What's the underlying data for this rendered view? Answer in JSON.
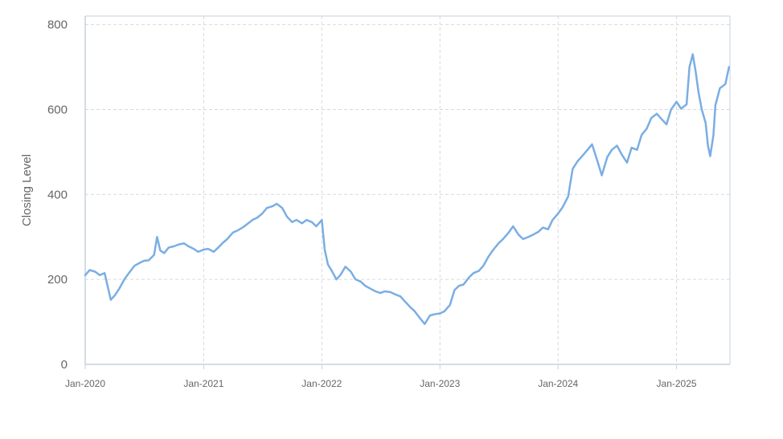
{
  "chart_data": {
    "type": "line",
    "title": "",
    "xlabel": "",
    "ylabel": "Closing Level",
    "xlim": [
      "2020-01-01",
      "2025-06-15"
    ],
    "ylim": [
      0,
      820
    ],
    "grid": true,
    "legend": "none",
    "x_ticks": [
      "Jan-2020",
      "Jan-2021",
      "Jan-2022",
      "Jan-2023",
      "Jan-2024",
      "Jan-2025"
    ],
    "x_tick_dates": [
      "2020-01-01",
      "2021-01-01",
      "2022-01-01",
      "2023-01-01",
      "2024-01-01",
      "2025-01-01"
    ],
    "y_ticks": [
      0,
      200,
      400,
      600,
      800
    ],
    "series": [
      {
        "color": "#7aaee3",
        "x": [
          "2020-01-01",
          "2020-01-15",
          "2020-02-01",
          "2020-02-15",
          "2020-03-01",
          "2020-03-10",
          "2020-03-20",
          "2020-04-01",
          "2020-04-15",
          "2020-05-01",
          "2020-05-15",
          "2020-06-01",
          "2020-06-15",
          "2020-07-01",
          "2020-07-15",
          "2020-08-01",
          "2020-08-10",
          "2020-08-20",
          "2020-09-01",
          "2020-09-15",
          "2020-10-01",
          "2020-10-15",
          "2020-11-01",
          "2020-11-15",
          "2020-12-01",
          "2020-12-15",
          "2021-01-01",
          "2021-01-15",
          "2021-02-01",
          "2021-02-15",
          "2021-03-01",
          "2021-03-15",
          "2021-04-01",
          "2021-04-15",
          "2021-05-01",
          "2021-05-15",
          "2021-06-01",
          "2021-06-15",
          "2021-07-01",
          "2021-07-15",
          "2021-08-01",
          "2021-08-15",
          "2021-09-01",
          "2021-09-15",
          "2021-10-01",
          "2021-10-15",
          "2021-11-01",
          "2021-11-15",
          "2021-12-01",
          "2021-12-15",
          "2022-01-01",
          "2022-01-10",
          "2022-01-20",
          "2022-02-01",
          "2022-02-15",
          "2022-03-01",
          "2022-03-15",
          "2022-04-01",
          "2022-04-15",
          "2022-05-01",
          "2022-05-15",
          "2022-06-01",
          "2022-06-15",
          "2022-07-01",
          "2022-07-15",
          "2022-08-01",
          "2022-08-15",
          "2022-09-01",
          "2022-09-15",
          "2022-10-01",
          "2022-10-15",
          "2022-11-01",
          "2022-11-15",
          "2022-12-01",
          "2022-12-15",
          "2023-01-01",
          "2023-01-15",
          "2023-02-01",
          "2023-02-15",
          "2023-03-01",
          "2023-03-15",
          "2023-04-01",
          "2023-04-15",
          "2023-05-01",
          "2023-05-15",
          "2023-06-01",
          "2023-06-15",
          "2023-07-01",
          "2023-07-15",
          "2023-08-01",
          "2023-08-15",
          "2023-09-01",
          "2023-09-15",
          "2023-10-01",
          "2023-10-15",
          "2023-11-01",
          "2023-11-15",
          "2023-12-01",
          "2023-12-15",
          "2024-01-01",
          "2024-01-15",
          "2024-02-01",
          "2024-02-15",
          "2024-03-01",
          "2024-03-15",
          "2024-04-01",
          "2024-04-15",
          "2024-05-01",
          "2024-05-15",
          "2024-06-01",
          "2024-06-15",
          "2024-07-01",
          "2024-07-15",
          "2024-08-01",
          "2024-08-15",
          "2024-09-01",
          "2024-09-15",
          "2024-10-01",
          "2024-10-15",
          "2024-11-01",
          "2024-11-15",
          "2024-12-01",
          "2024-12-15",
          "2025-01-01",
          "2025-01-15",
          "2025-02-01",
          "2025-02-10",
          "2025-02-20",
          "2025-03-01",
          "2025-03-10",
          "2025-03-20",
          "2025-04-01",
          "2025-04-08",
          "2025-04-15",
          "2025-04-25",
          "2025-05-01",
          "2025-05-15",
          "2025-06-01",
          "2025-06-12"
        ],
        "values": [
          210,
          222,
          218,
          210,
          215,
          185,
          152,
          162,
          178,
          200,
          215,
          232,
          238,
          244,
          245,
          258,
          300,
          268,
          262,
          275,
          278,
          282,
          285,
          278,
          272,
          265,
          270,
          272,
          265,
          275,
          286,
          295,
          310,
          315,
          322,
          330,
          340,
          345,
          355,
          368,
          372,
          378,
          368,
          348,
          335,
          340,
          332,
          340,
          335,
          325,
          340,
          270,
          235,
          220,
          200,
          212,
          230,
          218,
          200,
          195,
          185,
          178,
          172,
          168,
          172,
          170,
          165,
          160,
          148,
          135,
          125,
          108,
          95,
          115,
          118,
          120,
          125,
          140,
          175,
          185,
          188,
          205,
          215,
          220,
          232,
          255,
          270,
          285,
          295,
          310,
          325,
          305,
          295,
          300,
          305,
          312,
          322,
          318,
          340,
          355,
          370,
          395,
          460,
          478,
          490,
          505,
          518,
          480,
          445,
          488,
          505,
          515,
          495,
          475,
          510,
          505,
          540,
          555,
          580,
          590,
          578,
          565,
          600,
          618,
          602,
          612,
          700,
          730,
          690,
          640,
          600,
          568,
          515,
          490,
          540,
          610,
          650,
          660,
          700
        ]
      }
    ]
  }
}
